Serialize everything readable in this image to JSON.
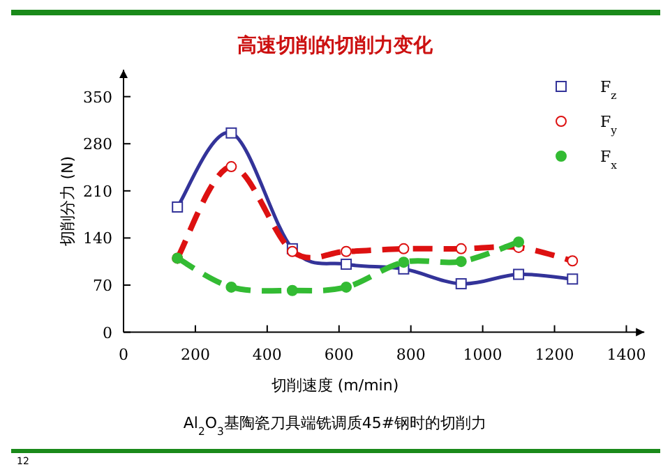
{
  "chart_data": {
    "type": "line",
    "title": "高速切削的切削力变化",
    "xlabel": "切削速度 (m/min)",
    "ylabel": "切削分力 (N)",
    "annotations": [
      "Al$_{2}$O$_{3}$基陶瓷刀具端铣调质45#钢时的切削力",
      "12"
    ],
    "x": [
      150,
      300,
      470,
      620,
      780,
      940,
      1100,
      1250
    ],
    "series": [
      {
        "name": "F$_{z}$",
        "color": "#333399",
        "marker": "square",
        "line_style": "solid",
        "values": [
          186,
          296,
          124,
          101,
          94,
          72,
          86,
          79
        ]
      },
      {
        "name": "F$_{y}$",
        "color": "#dd1111",
        "marker": "circle",
        "line_style": "dashed",
        "values": [
          110,
          246,
          120,
          120,
          124,
          124,
          126,
          106
        ]
      },
      {
        "name": "F$_{x}$",
        "color": "#33bb33",
        "marker": "circle",
        "line_style": "dashed",
        "values": [
          110,
          67,
          62,
          67,
          104,
          105,
          134,
          null
        ]
      }
    ],
    "xlim": [
      0,
      1450
    ],
    "ylim": [
      0,
      390
    ],
    "xticks": [
      0,
      200,
      400,
      600,
      800,
      1000,
      1200,
      1400
    ],
    "yticks": [
      0,
      70,
      140,
      210,
      280,
      350
    ],
    "grid": false,
    "legend": "top right"
  }
}
